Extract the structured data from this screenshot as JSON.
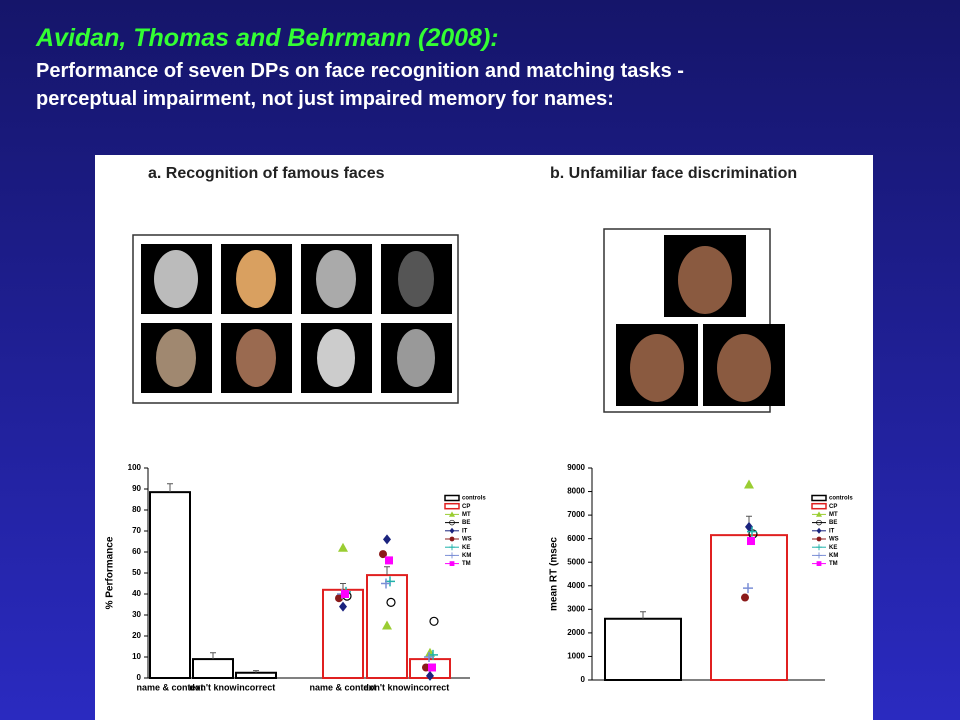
{
  "slide": {
    "heading": "Avidan, Thomas and Behrmann (2008):",
    "subheading_lines": [
      "Performance of seven DPs on face recognition and matching tasks -",
      "perceptual impairment, not just impaired memory for names:"
    ]
  },
  "chart_data": [
    {
      "type": "bar",
      "title": "a. Recognition of famous faces",
      "ylabel": "% Performance",
      "categories": [
        "name & context",
        "don't know",
        "incorrect"
      ],
      "ylim": [
        0,
        100
      ],
      "yticks": [
        0,
        10,
        20,
        30,
        40,
        50,
        60,
        70,
        80,
        90,
        100
      ],
      "series": [
        {
          "name": "controls",
          "color": "#000000",
          "values": [
            88.5,
            9,
            2.5
          ],
          "errors": [
            4,
            3,
            1
          ]
        },
        {
          "name": "CP",
          "color": "#e02020",
          "values": [
            42,
            49,
            9
          ],
          "errors": [
            3,
            4,
            1
          ]
        }
      ],
      "points": [
        {
          "name": "MT",
          "color": "#9acd32",
          "marker": "triangle",
          "values": [
            62,
            25,
            12
          ]
        },
        {
          "name": "BE",
          "color": "#000000",
          "marker": "open-circle",
          "values": [
            39,
            36,
            27
          ]
        },
        {
          "name": "IT",
          "color": "#1a237e",
          "marker": "diamond",
          "values": [
            34,
            66,
            1
          ]
        },
        {
          "name": "WS",
          "color": "#8b1a1a",
          "marker": "circle",
          "values": [
            38,
            59,
            5
          ]
        },
        {
          "name": "KE",
          "color": "#20b2aa",
          "marker": "plus",
          "values": [
            41,
            46,
            11
          ]
        },
        {
          "name": "KM",
          "color": "#7b8fd6",
          "marker": "plus",
          "values": [
            40,
            45,
            10
          ]
        },
        {
          "name": "TM",
          "color": "#ff00ff",
          "marker": "square",
          "values": [
            40,
            56,
            5
          ]
        }
      ]
    },
    {
      "type": "bar",
      "title": "b. Unfamiliar face discrimination",
      "ylabel": "mean RT (msec",
      "categories": [
        null
      ],
      "ylim": [
        0,
        9000
      ],
      "yticks": [
        0,
        1000,
        2000,
        3000,
        4000,
        5000,
        6000,
        7000,
        8000,
        9000
      ],
      "series": [
        {
          "name": "controls",
          "color": "#000000",
          "values": [
            2600
          ],
          "errors": [
            300
          ]
        },
        {
          "name": "CP",
          "color": "#e02020",
          "values": [
            6150
          ],
          "errors": [
            800
          ]
        }
      ],
      "points": [
        {
          "name": "MT",
          "color": "#9acd32",
          "marker": "triangle",
          "values": [
            8300
          ]
        },
        {
          "name": "BE",
          "color": "#000000",
          "marker": "open-circle",
          "values": [
            6200
          ]
        },
        {
          "name": "IT",
          "color": "#1a237e",
          "marker": "diamond",
          "values": [
            6500
          ]
        },
        {
          "name": "WS",
          "color": "#8b1a1a",
          "marker": "circle",
          "values": [
            3500
          ]
        },
        {
          "name": "KE",
          "color": "#20b2aa",
          "marker": "plus",
          "values": [
            6300
          ]
        },
        {
          "name": "KM",
          "color": "#7b8fd6",
          "marker": "plus",
          "values": [
            3900
          ]
        },
        {
          "name": "TM",
          "color": "#ff00ff",
          "marker": "square",
          "values": [
            5900
          ]
        }
      ]
    }
  ]
}
